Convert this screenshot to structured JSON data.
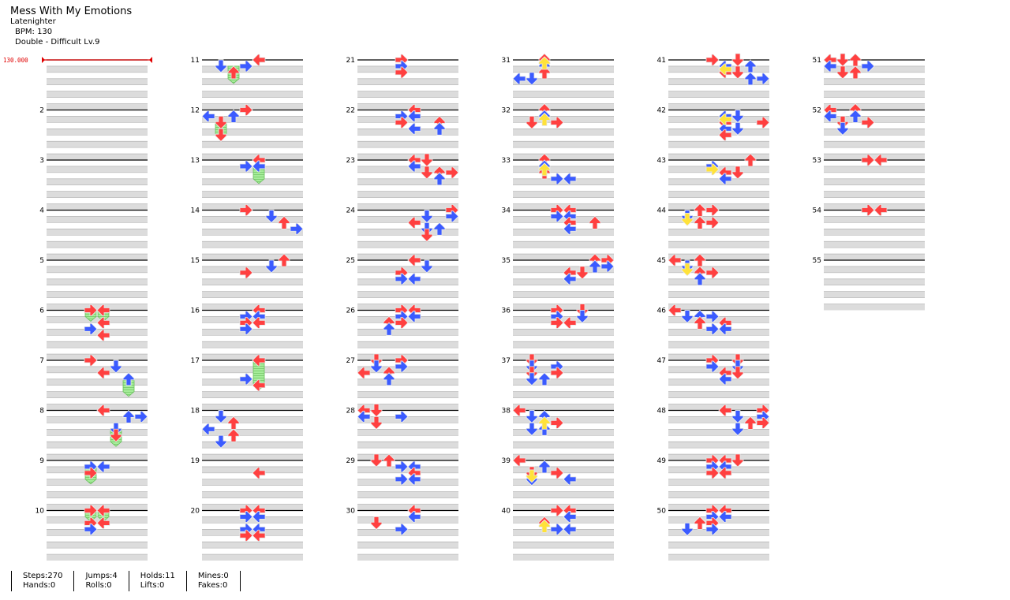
{
  "song": {
    "title": "Mess With My Emotions",
    "artist": "Latenighter",
    "bpm": "BPM: 130",
    "difficulty": "Double - Difficult  Lv.9"
  },
  "chart_bpm_marker": "130.000",
  "measures": [
    "2",
    "3",
    "4",
    "5",
    "6",
    "7",
    "8",
    "9",
    "10",
    "11",
    "12",
    "13",
    "14",
    "15",
    "16",
    "17",
    "18",
    "19",
    "20",
    "21",
    "22",
    "23",
    "24",
    "25",
    "26",
    "27",
    "28",
    "29",
    "30",
    "31",
    "32",
    "33",
    "34",
    "35",
    "36",
    "37",
    "38",
    "39",
    "40",
    "41",
    "42",
    "43",
    "44",
    "45",
    "46",
    "47",
    "48",
    "49",
    "50",
    "51",
    "52",
    "53",
    "54",
    "55"
  ],
  "stats": {
    "steps": "Steps:270",
    "hands": "Hands:0",
    "jumps": "Jumps:4",
    "rolls": "Rolls:0",
    "holds": "Holds:11",
    "lifts": "Lifts:0",
    "mines": "Mines:0",
    "fakes": "Fakes:0"
  },
  "colors": {
    "quarter": "#ff4040",
    "eighth": "#3b5bff",
    "sixteenth": "#ffe23a",
    "hold": "#9be88f",
    "band": "#dcdcdc",
    "bpm_line": "#e00000"
  }
}
